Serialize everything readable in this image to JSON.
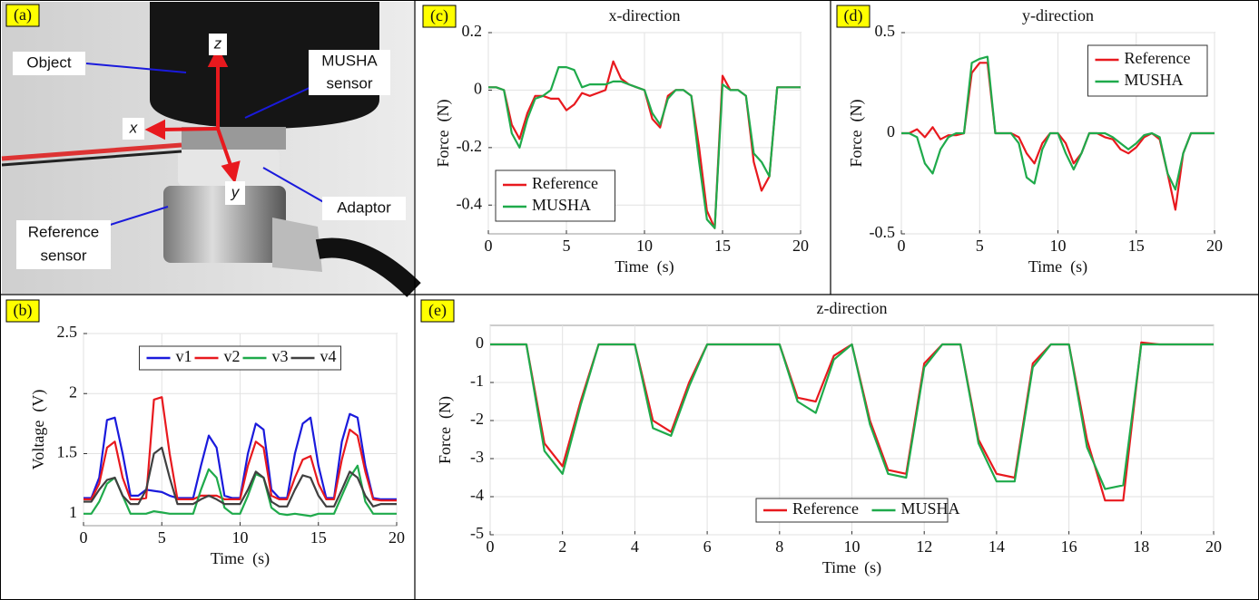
{
  "photo": {
    "label": "(a)",
    "object": "Object",
    "sensor_line1": "MUSHA",
    "sensor_line2": "sensor",
    "adaptor": "Adaptor",
    "reference_line1": "Reference",
    "reference_line2": "sensor",
    "axis_x": "x",
    "axis_y": "y",
    "axis_z": "z"
  },
  "chart_data": [
    {
      "type": "line",
      "label": "(c)",
      "title": "x-direction",
      "xlabel": "Time  (s)",
      "ylabel": "Force  (N)",
      "x": [
        0,
        0.5,
        1,
        1.5,
        2,
        2.5,
        3,
        3.5,
        4,
        4.5,
        5,
        5.5,
        6,
        6.5,
        7,
        7.5,
        8,
        8.5,
        9,
        9.5,
        10,
        10.5,
        11,
        11.5,
        12,
        12.5,
        13,
        13.5,
        14,
        14.5,
        15,
        15.5,
        16,
        16.5,
        17,
        17.5,
        18,
        18.5,
        19,
        19.5,
        20
      ],
      "series": [
        {
          "name": "Reference",
          "color": "#e8191e",
          "values": [
            0.01,
            0.01,
            0.0,
            -0.12,
            -0.17,
            -0.08,
            -0.02,
            -0.02,
            -0.03,
            -0.03,
            -0.07,
            -0.05,
            -0.01,
            -0.02,
            -0.01,
            0.0,
            0.1,
            0.04,
            0.02,
            0.01,
            0.0,
            -0.1,
            -0.13,
            -0.02,
            0.0,
            0.0,
            -0.02,
            -0.2,
            -0.42,
            -0.48,
            0.05,
            0.0,
            0.0,
            -0.02,
            -0.25,
            -0.35,
            -0.3,
            0.01,
            0.01,
            0.01,
            0.01
          ]
        },
        {
          "name": "MUSHA",
          "color": "#1faa4b",
          "values": [
            0.01,
            0.01,
            0.0,
            -0.15,
            -0.2,
            -0.1,
            -0.03,
            -0.02,
            0.0,
            0.08,
            0.08,
            0.07,
            0.01,
            0.02,
            0.02,
            0.02,
            0.03,
            0.03,
            0.02,
            0.01,
            0.0,
            -0.08,
            -0.12,
            -0.03,
            0.0,
            0.0,
            -0.02,
            -0.25,
            -0.45,
            -0.48,
            0.02,
            0.0,
            0.0,
            -0.02,
            -0.22,
            -0.25,
            -0.3,
            0.01,
            0.01,
            0.01,
            0.01
          ]
        }
      ],
      "xlim": [
        0,
        20
      ],
      "xticks": [
        0,
        5,
        10,
        15,
        20
      ],
      "ylim": [
        -0.5,
        0.2
      ],
      "yticks": [
        -0.4,
        -0.2,
        0,
        0.2
      ],
      "grid": true,
      "legend": "lower left"
    },
    {
      "type": "line",
      "label": "(d)",
      "title": "y-direction",
      "xlabel": "Time  (s)",
      "ylabel": "Force  (N)",
      "x": [
        0,
        0.5,
        1,
        1.5,
        2,
        2.5,
        3,
        3.5,
        4,
        4.5,
        5,
        5.5,
        6,
        6.5,
        7,
        7.5,
        8,
        8.5,
        9,
        9.5,
        10,
        10.5,
        11,
        11.5,
        12,
        12.5,
        13,
        13.5,
        14,
        14.5,
        15,
        15.5,
        16,
        16.5,
        17,
        17.5,
        18,
        18.5,
        19,
        19.5,
        20
      ],
      "series": [
        {
          "name": "Reference",
          "color": "#e8191e",
          "values": [
            0,
            0,
            0.02,
            -0.02,
            0.03,
            -0.03,
            -0.01,
            -0.01,
            0.0,
            0.3,
            0.35,
            0.35,
            0.0,
            0.0,
            0.0,
            -0.02,
            -0.1,
            -0.15,
            -0.05,
            0.0,
            0.0,
            -0.05,
            -0.15,
            -0.1,
            0.0,
            0.0,
            -0.02,
            -0.03,
            -0.08,
            -0.1,
            -0.07,
            -0.02,
            0.0,
            -0.03,
            -0.2,
            -0.38,
            -0.1,
            0.0,
            0.0,
            0.0,
            0.0
          ]
        },
        {
          "name": "MUSHA",
          "color": "#1faa4b",
          "values": [
            0,
            0,
            -0.02,
            -0.15,
            -0.2,
            -0.08,
            -0.02,
            0,
            0,
            0.35,
            0.37,
            0.38,
            0.0,
            0,
            0,
            -0.05,
            -0.22,
            -0.25,
            -0.08,
            0,
            0,
            -0.1,
            -0.18,
            -0.1,
            0,
            0,
            0,
            -0.02,
            -0.05,
            -0.08,
            -0.05,
            -0.01,
            0,
            -0.02,
            -0.2,
            -0.28,
            -0.1,
            0,
            0,
            0,
            0
          ]
        }
      ],
      "xlim": [
        0,
        20
      ],
      "xticks": [
        0,
        5,
        10,
        15,
        20
      ],
      "ylim": [
        -0.5,
        0.5
      ],
      "yticks": [
        -0.5,
        0,
        0.5
      ],
      "grid": true,
      "legend": "upper right"
    },
    {
      "type": "line",
      "label": "(b)",
      "xlabel": "Time  (s)",
      "ylabel": "Voltage  (V)",
      "x": [
        0,
        0.5,
        1,
        1.5,
        2,
        2.5,
        3,
        3.5,
        4,
        4.5,
        5,
        5.5,
        6,
        6.5,
        7,
        7.5,
        8,
        8.5,
        9,
        9.5,
        10,
        10.5,
        11,
        11.5,
        12,
        12.5,
        13,
        13.5,
        14,
        14.5,
        15,
        15.5,
        16,
        16.5,
        17,
        17.5,
        18,
        18.5,
        19,
        19.5,
        20
      ],
      "series": [
        {
          "name": "v1",
          "color": "#1a1adc",
          "values": [
            1.13,
            1.13,
            1.3,
            1.78,
            1.8,
            1.5,
            1.15,
            1.15,
            1.2,
            1.19,
            1.18,
            1.15,
            1.13,
            1.13,
            1.13,
            1.4,
            1.65,
            1.55,
            1.15,
            1.13,
            1.13,
            1.5,
            1.75,
            1.7,
            1.2,
            1.13,
            1.13,
            1.5,
            1.75,
            1.8,
            1.4,
            1.13,
            1.13,
            1.6,
            1.83,
            1.8,
            1.4,
            1.13,
            1.12,
            1.12,
            1.12
          ]
        },
        {
          "name": "v2",
          "color": "#e8191e",
          "values": [
            1.12,
            1.12,
            1.25,
            1.55,
            1.6,
            1.3,
            1.12,
            1.12,
            1.13,
            1.95,
            1.97,
            1.5,
            1.12,
            1.12,
            1.12,
            1.15,
            1.15,
            1.15,
            1.12,
            1.12,
            1.12,
            1.4,
            1.6,
            1.55,
            1.15,
            1.12,
            1.12,
            1.3,
            1.45,
            1.48,
            1.25,
            1.12,
            1.12,
            1.45,
            1.7,
            1.65,
            1.35,
            1.12,
            1.11,
            1.11,
            1.11
          ]
        },
        {
          "name": "v3",
          "color": "#1faa4b",
          "values": [
            1.0,
            1.0,
            1.1,
            1.25,
            1.3,
            1.15,
            1.0,
            1.0,
            1.0,
            1.02,
            1.01,
            1.0,
            1.0,
            1.0,
            1.0,
            1.2,
            1.37,
            1.3,
            1.05,
            1.0,
            1.0,
            1.15,
            1.33,
            1.3,
            1.05,
            1.0,
            0.99,
            1.0,
            0.99,
            0.98,
            1.0,
            1.0,
            1.0,
            1.15,
            1.3,
            1.4,
            1.1,
            1.0,
            1.0,
            1.0,
            1.0
          ]
        },
        {
          "name": "v4",
          "color": "#404040",
          "values": [
            1.1,
            1.1,
            1.2,
            1.28,
            1.3,
            1.15,
            1.08,
            1.08,
            1.2,
            1.5,
            1.55,
            1.3,
            1.08,
            1.08,
            1.08,
            1.12,
            1.15,
            1.12,
            1.08,
            1.08,
            1.08,
            1.2,
            1.35,
            1.3,
            1.1,
            1.06,
            1.06,
            1.2,
            1.32,
            1.3,
            1.15,
            1.06,
            1.06,
            1.2,
            1.35,
            1.3,
            1.15,
            1.06,
            1.08,
            1.08,
            1.08
          ]
        }
      ],
      "xlim": [
        0,
        20
      ],
      "xticks": [
        0,
        5,
        10,
        15,
        20
      ],
      "ylim": [
        0.9,
        2.5
      ],
      "yticks": [
        1,
        1.5,
        2,
        2.5
      ],
      "grid": true,
      "legend": "upper center"
    },
    {
      "type": "line",
      "label": "(e)",
      "title": "z-direction",
      "xlabel": "Time  (s)",
      "ylabel": "Force  (N)",
      "x": [
        0,
        0.5,
        1,
        1.5,
        2,
        2.5,
        3,
        3.5,
        4,
        4.5,
        5,
        5.5,
        6,
        6.5,
        7,
        7.5,
        8,
        8.5,
        9,
        9.5,
        10,
        10.5,
        11,
        11.5,
        12,
        12.5,
        13,
        13.5,
        14,
        14.5,
        15,
        15.5,
        16,
        16.5,
        17,
        17.5,
        18,
        18.5,
        19,
        19.5,
        20
      ],
      "series": [
        {
          "name": "Reference",
          "color": "#e8191e",
          "values": [
            0,
            0,
            0,
            -2.6,
            -3.2,
            -1.5,
            0,
            0,
            0,
            -2.0,
            -2.3,
            -1.0,
            0,
            0,
            0,
            0,
            0,
            -1.4,
            -1.5,
            -0.3,
            0,
            -2.0,
            -3.3,
            -3.4,
            -0.5,
            0,
            0,
            -2.5,
            -3.4,
            -3.5,
            -0.5,
            0,
            0,
            -2.5,
            -4.1,
            -4.1,
            0.05,
            0,
            0,
            0,
            0
          ]
        },
        {
          "name": "MUSHA",
          "color": "#1faa4b",
          "values": [
            0,
            0,
            0,
            -2.8,
            -3.4,
            -1.6,
            0,
            0,
            0,
            -2.2,
            -2.4,
            -1.1,
            0,
            0,
            0,
            0,
            0,
            -1.5,
            -1.8,
            -0.4,
            0,
            -2.1,
            -3.4,
            -3.5,
            -0.6,
            0,
            0,
            -2.6,
            -3.6,
            -3.6,
            -0.6,
            0,
            0,
            -2.7,
            -3.8,
            -3.7,
            0,
            0,
            0,
            0,
            0
          ]
        }
      ],
      "xlim": [
        0,
        20
      ],
      "xticks": [
        0,
        2,
        4,
        6,
        8,
        10,
        12,
        14,
        16,
        18,
        20
      ],
      "ylim": [
        -5,
        0.5
      ],
      "yticks": [
        -5,
        -4,
        -3,
        -2,
        -1,
        0
      ],
      "grid": true,
      "legend": "lower center"
    }
  ]
}
